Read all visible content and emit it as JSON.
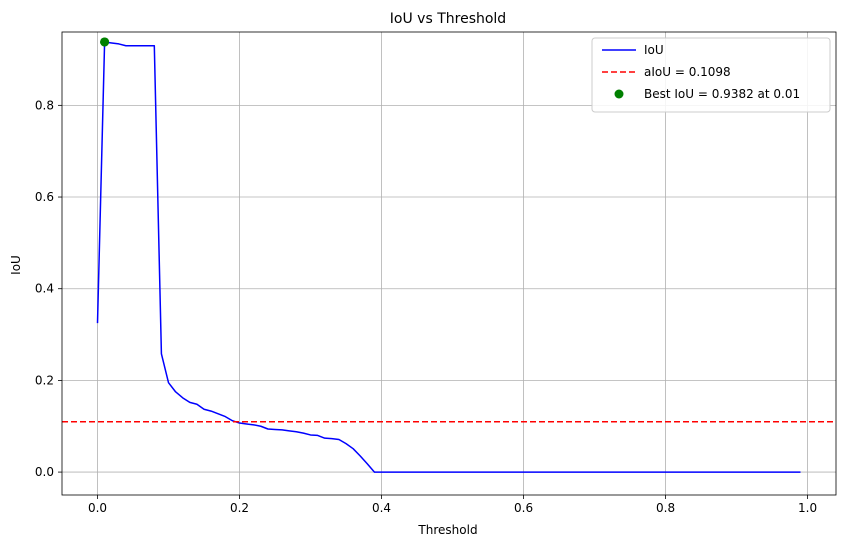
{
  "chart_data": {
    "type": "line",
    "title": "IoU vs Threshold",
    "xlabel": "Threshold",
    "ylabel": "IoU",
    "xlim": [
      -0.05,
      1.04
    ],
    "ylim": [
      -0.05,
      0.96
    ],
    "xticks": [
      0.0,
      0.2,
      0.4,
      0.6,
      0.8,
      1.0
    ],
    "xtick_labels": [
      "0.0",
      "0.2",
      "0.4",
      "0.6",
      "0.8",
      "1.0"
    ],
    "yticks": [
      0.0,
      0.2,
      0.4,
      0.6,
      0.8
    ],
    "ytick_labels": [
      "0.0",
      "0.2",
      "0.4",
      "0.6",
      "0.8"
    ],
    "grid": true,
    "legend_position": "top-right",
    "series": [
      {
        "name": "IoU",
        "color": "#0000ff",
        "style": "solid",
        "x": [
          0.0,
          0.01,
          0.02,
          0.03,
          0.04,
          0.05,
          0.06,
          0.07,
          0.08,
          0.09,
          0.1,
          0.11,
          0.12,
          0.13,
          0.14,
          0.15,
          0.16,
          0.17,
          0.18,
          0.19,
          0.2,
          0.21,
          0.22,
          0.23,
          0.24,
          0.25,
          0.26,
          0.27,
          0.28,
          0.29,
          0.3,
          0.31,
          0.32,
          0.33,
          0.34,
          0.35,
          0.36,
          0.37,
          0.38,
          0.39,
          0.4,
          0.99
        ],
        "y": [
          0.325,
          0.9382,
          0.936,
          0.934,
          0.93,
          0.93,
          0.93,
          0.93,
          0.93,
          0.258,
          0.195,
          0.175,
          0.162,
          0.152,
          0.148,
          0.137,
          0.133,
          0.127,
          0.121,
          0.112,
          0.107,
          0.105,
          0.103,
          0.1,
          0.094,
          0.093,
          0.092,
          0.09,
          0.088,
          0.085,
          0.081,
          0.08,
          0.074,
          0.073,
          0.071,
          0.062,
          0.051,
          0.035,
          0.018,
          0.0,
          0.0,
          0.0
        ]
      },
      {
        "name": "aIoU = 0.1098",
        "color": "#ff0000",
        "style": "dashed",
        "type": "hline",
        "y": 0.1098
      },
      {
        "name": "Best IoU = 0.9382 at 0.01",
        "color": "#008000",
        "style": "marker",
        "type": "point",
        "x": 0.01,
        "y": 0.9382
      }
    ]
  }
}
